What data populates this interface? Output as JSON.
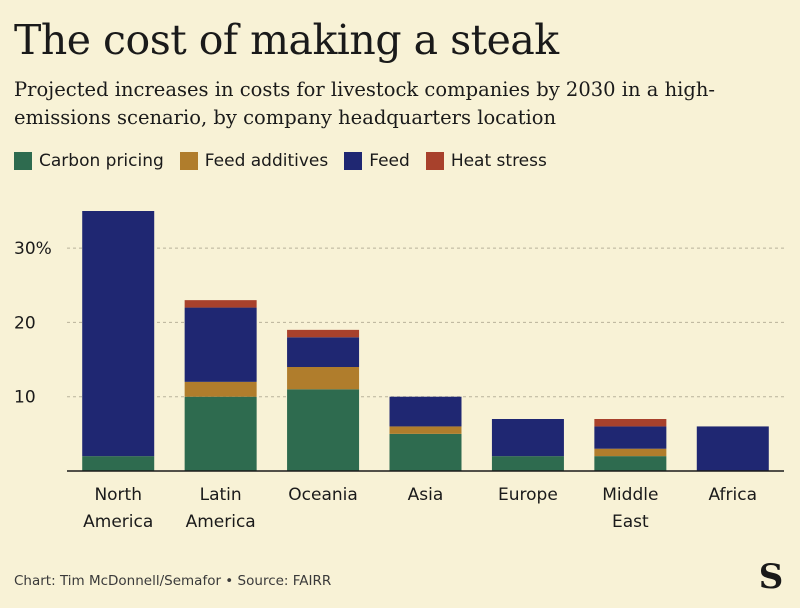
{
  "title": "The cost of making a steak",
  "subtitle": "Projected increases in costs for livestock companies by 2030 in a high-emissions scenario, by company headquarters location",
  "footer": "Chart: Tim McDonnell/Semafor • Source: FAIRR",
  "logo_text": "S",
  "chart_data": {
    "type": "bar",
    "stacked": true,
    "categories": [
      "North America",
      "Latin America",
      "Oceania",
      "Asia",
      "Europe",
      "Middle East",
      "Africa"
    ],
    "category_lines": [
      [
        "North",
        "America"
      ],
      [
        "Latin",
        "America"
      ],
      [
        "Oceania"
      ],
      [
        "Asia"
      ],
      [
        "Europe"
      ],
      [
        "Middle",
        "East"
      ],
      [
        "Africa"
      ]
    ],
    "series": [
      {
        "name": "Carbon pricing",
        "color": "#2e6b4f",
        "values": [
          2,
          10,
          11,
          5,
          2,
          2,
          0
        ]
      },
      {
        "name": "Feed additives",
        "color": "#b07d2c",
        "values": [
          0,
          2,
          3,
          1,
          0,
          1,
          0
        ]
      },
      {
        "name": "Feed",
        "color": "#1f2772",
        "values": [
          33,
          10,
          4,
          4,
          5,
          3,
          6
        ]
      },
      {
        "name": "Heat stress",
        "color": "#a8412c",
        "values": [
          0,
          1,
          1,
          0,
          0,
          1,
          0
        ]
      }
    ],
    "ylim": [
      0,
      35
    ],
    "yticks": [
      10,
      20,
      30
    ],
    "ytick_labels": [
      "10",
      "20",
      "30%"
    ],
    "grid": true,
    "legend": "top-left"
  }
}
